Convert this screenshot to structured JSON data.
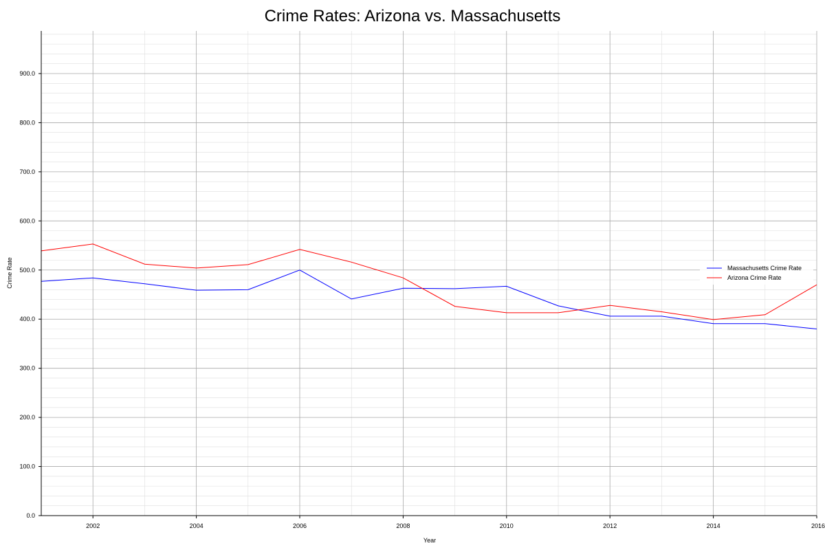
{
  "chart_data": {
    "type": "line",
    "title": "Crime Rates: Arizona vs. Massachusetts",
    "xlabel": "Year",
    "ylabel": "Crime Rate",
    "xlim": [
      2001,
      2016
    ],
    "ylim": [
      0,
      1000
    ],
    "x_ticks": [
      2002,
      2004,
      2006,
      2008,
      2010,
      2012,
      2014,
      2016
    ],
    "y_ticks": [
      0,
      100,
      200,
      300,
      400,
      500,
      600,
      700,
      800,
      900
    ],
    "y_tick_labels": [
      "0.0",
      "100.0",
      "200.0",
      "300.0",
      "400.0",
      "500.0",
      "600.0",
      "700.0",
      "800.0",
      "900.0"
    ],
    "grid": true,
    "legend_position": "right",
    "x": [
      2001,
      2002,
      2003,
      2004,
      2005,
      2006,
      2007,
      2008,
      2009,
      2010,
      2011,
      2012,
      2013,
      2014,
      2015,
      2016
    ],
    "series": [
      {
        "name": "Massachusetts Crime Rate",
        "color": "#0000ff",
        "values": [
          477,
          484,
          472,
          459,
          460,
          500,
          441,
          463,
          462,
          467,
          427,
          406,
          406,
          391,
          391,
          380
        ]
      },
      {
        "name": "Arizona Crime Rate",
        "color": "#ff0000",
        "values": [
          539,
          553,
          512,
          504,
          511,
          542,
          516,
          484,
          426,
          413,
          413,
          428,
          415,
          399,
          409,
          470
        ]
      }
    ]
  }
}
